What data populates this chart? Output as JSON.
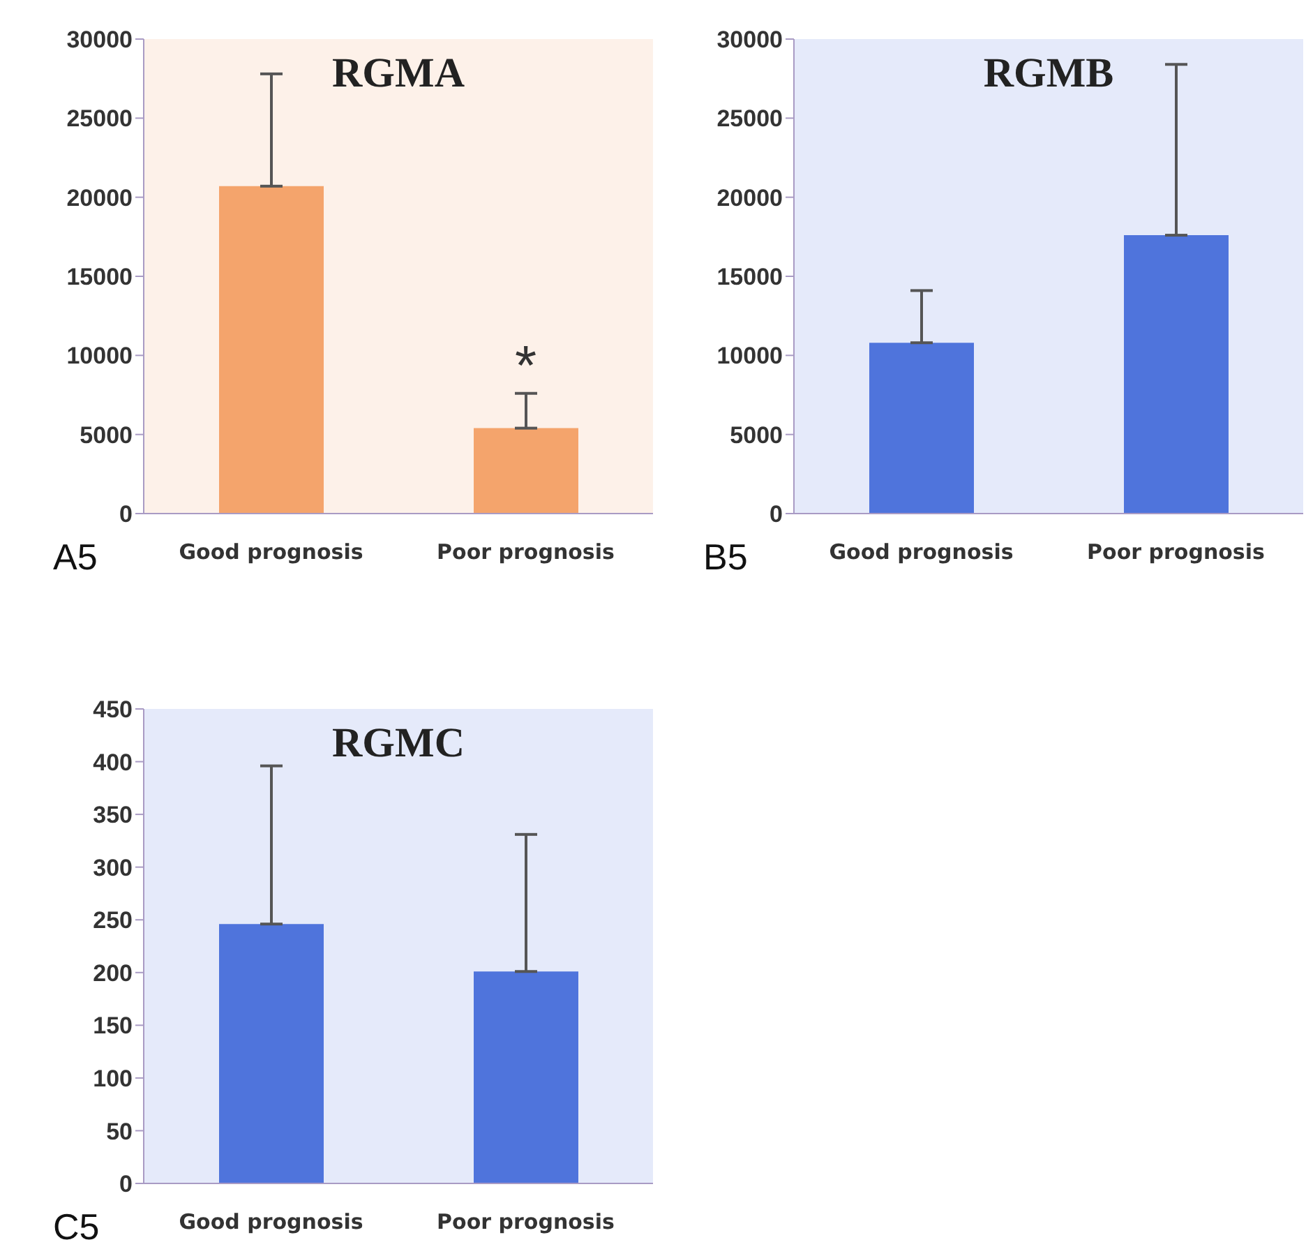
{
  "chart_data": [
    {
      "type": "bar",
      "title": "RGMA",
      "categories": [
        "Good prognosis",
        "Poor prognosis"
      ],
      "values": [
        20700,
        5400
      ],
      "errors": [
        [
          20700,
          27800
        ],
        [
          5400,
          7600
        ]
      ],
      "color": "#f4a46c",
      "ylim": [
        0,
        30000
      ],
      "yticks": [
        0,
        5000,
        10000,
        15000,
        20000,
        25000,
        30000
      ],
      "annotations": [
        "A5",
        "*"
      ]
    },
    {
      "type": "bar",
      "title": "RGMB",
      "categories": [
        "Good prognosis",
        "Poor prognosis"
      ],
      "values": [
        10800,
        17600
      ],
      "errors": [
        [
          10800,
          14100
        ],
        [
          17600,
          28400
        ]
      ],
      "color": "#4f74dc",
      "ylim": [
        0,
        30000
      ],
      "yticks": [
        0,
        5000,
        10000,
        15000,
        20000,
        25000,
        30000
      ],
      "annotations": [
        "B5"
      ]
    },
    {
      "type": "bar",
      "title": "RGMC",
      "categories": [
        "Good prognosis",
        "Poor prognosis"
      ],
      "values": [
        246,
        201
      ],
      "errors": [
        [
          246,
          396
        ],
        [
          201,
          331
        ]
      ],
      "color": "#4f74dc",
      "ylim": [
        0,
        450
      ],
      "yticks": [
        0,
        50,
        100,
        150,
        200,
        250,
        300,
        350,
        400,
        450
      ],
      "annotations": [
        "C5"
      ]
    }
  ]
}
